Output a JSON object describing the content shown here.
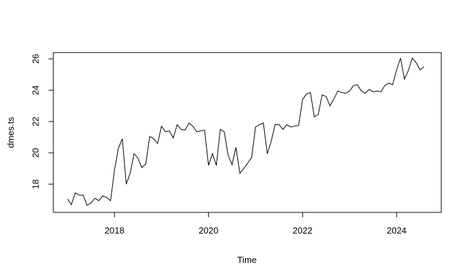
{
  "chart_data": {
    "type": "line",
    "title": "",
    "xlabel": "Time",
    "ylabel": "dmes.ts",
    "xlim": [
      2016.7,
      2024.95
    ],
    "ylim": [
      16.2,
      26.4
    ],
    "x_ticks": [
      2018,
      2020,
      2022,
      2024
    ],
    "y_ticks": [
      18,
      20,
      22,
      24,
      26
    ],
    "grid": false,
    "start": 2017.0,
    "frequency": 12,
    "series": [
      {
        "values": [
          17.05,
          16.7,
          17.45,
          17.3,
          17.3,
          16.65,
          16.8,
          17.1,
          16.95,
          17.25,
          17.15,
          16.95,
          18.9,
          20.3,
          20.9,
          18.0,
          18.7,
          19.95,
          19.65,
          19.05,
          19.3,
          21.05,
          20.9,
          20.6,
          21.7,
          21.35,
          21.4,
          20.95,
          21.8,
          21.5,
          21.45,
          21.9,
          21.7,
          21.35,
          21.4,
          21.45,
          19.2,
          19.95,
          19.2,
          21.5,
          21.35,
          19.85,
          19.25,
          20.35,
          18.7,
          19.0,
          19.35,
          19.7,
          21.65,
          21.8,
          21.9,
          19.95,
          20.75,
          21.8,
          21.8,
          21.5,
          21.8,
          21.65,
          21.7,
          21.75,
          23.4,
          23.75,
          23.85,
          22.3,
          22.45,
          23.7,
          23.6,
          23.0,
          23.45,
          23.95,
          23.85,
          23.8,
          23.95,
          24.3,
          24.35,
          23.95,
          23.8,
          24.05,
          23.9,
          23.95,
          23.9,
          24.3,
          24.45,
          24.35,
          25.3,
          26.05,
          24.7,
          25.25,
          26.05,
          25.75,
          25.3,
          25.5
        ]
      }
    ]
  }
}
